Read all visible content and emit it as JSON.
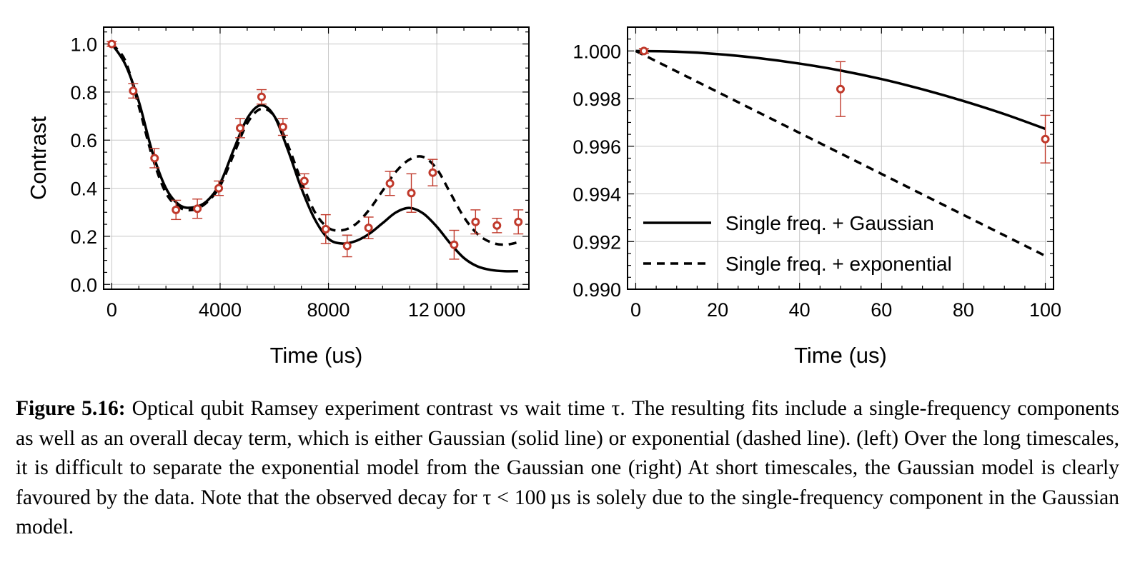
{
  "chart_data": [
    {
      "type": "scatter",
      "xlabel": "Time (us)",
      "ylabel": "Contrast",
      "xlim": [
        -300,
        15400
      ],
      "ylim": [
        -0.02,
        1.07
      ],
      "xticks": [
        0,
        4000,
        8000,
        12000
      ],
      "xtick_labels": [
        "0",
        "4000",
        "8000",
        "12 000"
      ],
      "yticks": [
        0.0,
        0.2,
        0.4,
        0.6,
        0.8,
        1.0
      ],
      "ytick_labels": [
        "0.0",
        "0.2",
        "0.4",
        "0.6",
        "0.8",
        "1.0"
      ],
      "grid": true,
      "points": {
        "x": [
          0,
          790,
          1580,
          2370,
          3160,
          3950,
          4740,
          5530,
          6320,
          7110,
          7900,
          8690,
          9480,
          10270,
          11060,
          11850,
          12640,
          13430,
          14220,
          15010
        ],
        "y": [
          1.0,
          0.805,
          0.525,
          0.31,
          0.315,
          0.4,
          0.65,
          0.78,
          0.655,
          0.43,
          0.23,
          0.16,
          0.235,
          0.42,
          0.38,
          0.465,
          0.165,
          0.26,
          0.245,
          0.26
        ],
        "err": [
          0.01,
          0.03,
          0.04,
          0.04,
          0.04,
          0.03,
          0.04,
          0.03,
          0.035,
          0.03,
          0.06,
          0.045,
          0.045,
          0.05,
          0.08,
          0.055,
          0.06,
          0.05,
          0.03,
          0.05
        ]
      },
      "series": [
        {
          "style": "solid",
          "x": [
            0,
            500,
            1000,
            1500,
            2000,
            2500,
            3000,
            3500,
            4000,
            4500,
            5000,
            5500,
            6000,
            6500,
            7000,
            7500,
            8000,
            8500,
            9000,
            9500,
            10000,
            10500,
            11000,
            11500,
            12000,
            12500,
            13000,
            13500,
            14000,
            14500,
            15000
          ],
          "y": [
            1.0,
            0.915,
            0.76,
            0.55,
            0.4,
            0.33,
            0.32,
            0.345,
            0.42,
            0.56,
            0.69,
            0.745,
            0.7,
            0.56,
            0.4,
            0.27,
            0.19,
            0.17,
            0.18,
            0.21,
            0.255,
            0.3,
            0.318,
            0.295,
            0.24,
            0.17,
            0.11,
            0.075,
            0.06,
            0.055,
            0.055
          ]
        },
        {
          "style": "dashed",
          "x": [
            0,
            500,
            1000,
            1500,
            2000,
            2500,
            3000,
            3500,
            4000,
            4500,
            5000,
            5500,
            6000,
            6500,
            7000,
            7500,
            8000,
            8500,
            9000,
            9500,
            10000,
            10500,
            11000,
            11500,
            12000,
            12500,
            13000,
            13500,
            14000,
            14500,
            15000
          ],
          "y": [
            1.0,
            0.93,
            0.74,
            0.53,
            0.38,
            0.32,
            0.31,
            0.34,
            0.41,
            0.54,
            0.67,
            0.73,
            0.7,
            0.58,
            0.43,
            0.3,
            0.235,
            0.225,
            0.25,
            0.31,
            0.39,
            0.47,
            0.52,
            0.53,
            0.48,
            0.38,
            0.28,
            0.21,
            0.175,
            0.165,
            0.175
          ]
        }
      ]
    },
    {
      "type": "scatter",
      "xlabel": "Time (us)",
      "ylabel": "",
      "xlim": [
        -2,
        102
      ],
      "ylim": [
        0.99,
        1.001
      ],
      "xticks": [
        0,
        20,
        40,
        60,
        80,
        100
      ],
      "xtick_labels": [
        "0",
        "20",
        "40",
        "60",
        "80",
        "100"
      ],
      "yticks": [
        0.99,
        0.992,
        0.994,
        0.996,
        0.998,
        1.0
      ],
      "ytick_labels": [
        "0.990",
        "0.992",
        "0.994",
        "0.996",
        "0.998",
        "1.000"
      ],
      "grid": true,
      "points": {
        "x": [
          2,
          50,
          100
        ],
        "y": [
          1.0,
          0.9984,
          0.9963
        ],
        "err": [
          0.0001,
          0.00115,
          0.001
        ]
      },
      "series": [
        {
          "name": "Single freq. + Gaussian",
          "style": "solid",
          "x": [
            0,
            10,
            20,
            30,
            40,
            50,
            60,
            70,
            80,
            90,
            100
          ],
          "y": [
            1.0,
            0.99997,
            0.99987,
            0.9997,
            0.99947,
            0.99918,
            0.99882,
            0.99839,
            0.9979,
            0.99735,
            0.99673
          ]
        },
        {
          "name": "Single freq. + exponential",
          "style": "dashed",
          "x": [
            0,
            10,
            20,
            30,
            40,
            50,
            60,
            70,
            80,
            90,
            100
          ],
          "y": [
            1.0,
            0.99914,
            0.99828,
            0.99742,
            0.99656,
            0.9957,
            0.99484,
            0.99398,
            0.99312,
            0.99226,
            0.9914
          ]
        }
      ],
      "legend": "bottom-left"
    }
  ],
  "caption": {
    "label": "Figure 5.16:",
    "text": " Optical qubit Ramsey experiment contrast vs wait time τ. The resulting fits include a single-frequency components as well as an overall decay term, which is either Gaussian (solid line) or exponential (dashed line). (left) Over the long timescales, it is difficult to separate the exponential model from the Gaussian one (right) At short timescales, the Gaussian model is clearly favoured by the data. Note that the observed decay for τ < 100 µs is solely due to the single-frequency component in the Gaussian model."
  },
  "colors": {
    "marker": "#c0392b",
    "line": "#000000",
    "grid": "#c8c8c8"
  }
}
